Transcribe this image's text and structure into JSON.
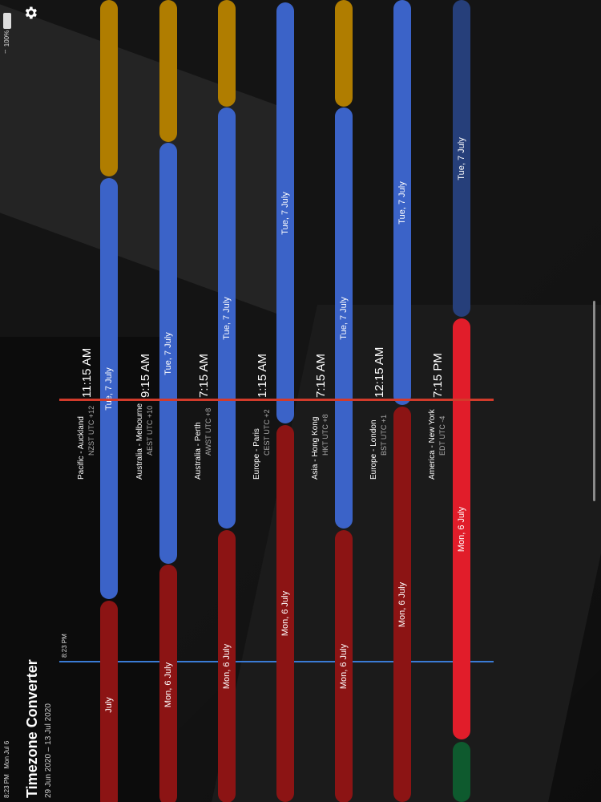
{
  "status_bar": {
    "time": "8:23 PM",
    "date": "Mon Jul 6",
    "battery": "100%"
  },
  "header": {
    "title": "Timezone Converter",
    "range": "29 Jun 2020 – 13 Jul 2020"
  },
  "now_marker": {
    "label": "8:23 PM"
  },
  "zones": [
    {
      "name": "Pacific - Auckland",
      "abbr": "NZST UTC +12",
      "time": "11:15 AM",
      "segments": [
        {
          "label": ""
        },
        {
          "label": "Tue, 7 July"
        },
        {
          "label": "July"
        }
      ]
    },
    {
      "name": "Australia - Melbourne",
      "abbr": "AEST UTC +10",
      "time": "9:15 AM",
      "segments": [
        {
          "label": ""
        },
        {
          "label": "Tue, 7 July"
        },
        {
          "label": "Mon, 6 July"
        }
      ]
    },
    {
      "name": "Australia - Perth",
      "abbr": "AWST UTC +8",
      "time": "7:15 AM",
      "segments": [
        {
          "label": ""
        },
        {
          "label": "Tue, 7 July"
        },
        {
          "label": "Mon, 6 July"
        }
      ]
    },
    {
      "name": "Europe - Paris",
      "abbr": "CEST UTC +2",
      "time": "1:15 AM",
      "segments": [
        {
          "label": "Tue, 7 July"
        },
        {
          "label": "Mon, 6 July"
        }
      ]
    },
    {
      "name": "Asia - Hong Kong",
      "abbr": "HKT UTC +8",
      "time": "7:15 AM",
      "segments": [
        {
          "label": ""
        },
        {
          "label": "Tue, 7 July"
        },
        {
          "label": "Mon, 6 July"
        }
      ]
    },
    {
      "name": "Europe - London",
      "abbr": "BST UTC +1",
      "time": "12:15 AM",
      "segments": [
        {
          "label": "Tue, 7 July"
        },
        {
          "label": "Mon, 6 July"
        }
      ]
    },
    {
      "name": "America - New York",
      "abbr": "EDT UTC -4",
      "time": "7:15 PM",
      "segments": [
        {
          "label": "Tue, 7 July"
        },
        {
          "label": "Mon, 6 July"
        },
        {
          "label": ""
        }
      ]
    }
  ],
  "colors": {
    "day_gold": "#b07d00",
    "day_blue": "#3b63c8",
    "night_red": "#8c1414",
    "selected_red": "#e11d2a",
    "current_line": "#3a7bd5",
    "select_line": "#d23b2b"
  }
}
